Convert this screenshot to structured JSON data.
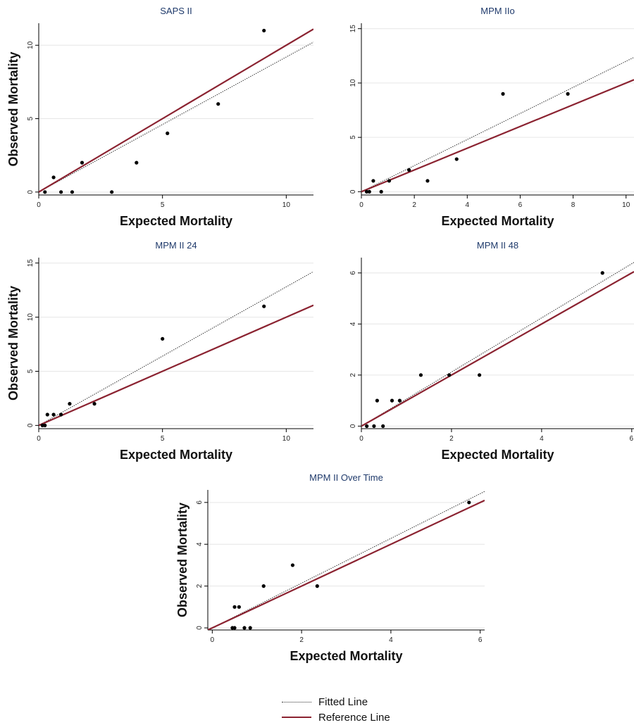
{
  "colors": {
    "fitted": "#333333",
    "reference": "#8b2331",
    "points": "#000000",
    "title": "#1f3a6b",
    "grid": "#e6e6e6"
  },
  "legend": {
    "fitted_label": "Fitted Line",
    "reference_label": "Reference Line"
  },
  "chart_data": [
    {
      "type": "scatter",
      "title": "SAPS II",
      "xlabel": "Expected Mortality",
      "ylabel": "Observed Mortality",
      "xlim": [
        0,
        11.1
      ],
      "ylim": [
        -0.2,
        11.5
      ],
      "xticks": [
        0,
        5,
        10
      ],
      "yticks": [
        0,
        5,
        10
      ],
      "grid": "horizontal",
      "points": [
        [
          0.25,
          0
        ],
        [
          0.6,
          1
        ],
        [
          0.9,
          0
        ],
        [
          1.35,
          0
        ],
        [
          1.75,
          2
        ],
        [
          2.95,
          0
        ],
        [
          3.95,
          2
        ],
        [
          5.2,
          4
        ],
        [
          7.25,
          6
        ],
        [
          9.1,
          11
        ]
      ],
      "fitted_line": {
        "slope": 0.92,
        "intercept": 0
      },
      "reference_line": {
        "slope": 1,
        "intercept": 0
      }
    },
    {
      "type": "scatter",
      "title": "MPM IIo",
      "xlabel": "Expected Mortality",
      "ylabel": "",
      "xlim": [
        0,
        10.3
      ],
      "ylim": [
        -0.3,
        15.5
      ],
      "xticks": [
        0,
        2,
        4,
        6,
        8,
        10
      ],
      "yticks": [
        0,
        5,
        10,
        15
      ],
      "grid": "horizontal",
      "points": [
        [
          0.2,
          0
        ],
        [
          0.3,
          0
        ],
        [
          0.45,
          1
        ],
        [
          0.75,
          0
        ],
        [
          1.05,
          1
        ],
        [
          1.8,
          2
        ],
        [
          2.5,
          1
        ],
        [
          3.6,
          3
        ],
        [
          5.35,
          9
        ],
        [
          7.8,
          9
        ]
      ],
      "fitted_line": {
        "slope": 1.2,
        "intercept": 0
      },
      "reference_line": {
        "slope": 1,
        "intercept": 0
      }
    },
    {
      "type": "scatter",
      "title": "MPM II 24",
      "xlabel": "Expected Mortality",
      "ylabel": "Observed Mortality",
      "xlim": [
        0,
        11.1
      ],
      "ylim": [
        -0.3,
        15.5
      ],
      "xticks": [
        0,
        5,
        10
      ],
      "yticks": [
        0,
        5,
        10,
        15
      ],
      "grid": "horizontal",
      "points": [
        [
          0.15,
          0
        ],
        [
          0.25,
          0
        ],
        [
          0.35,
          1
        ],
        [
          0.6,
          1
        ],
        [
          0.9,
          1
        ],
        [
          1.25,
          2
        ],
        [
          2.25,
          2
        ],
        [
          5,
          8
        ],
        [
          9.1,
          11
        ]
      ],
      "fitted_line": {
        "slope": 1.28,
        "intercept": 0
      },
      "reference_line": {
        "slope": 1,
        "intercept": 0
      }
    },
    {
      "type": "scatter",
      "title": "MPM II 48",
      "xlabel": "Expected Mortality",
      "ylabel": "",
      "xlim": [
        0,
        6.05
      ],
      "ylim": [
        -0.1,
        6.6
      ],
      "xticks": [
        0,
        2,
        4,
        6
      ],
      "yticks": [
        0,
        2,
        4,
        6
      ],
      "grid": "horizontal",
      "points": [
        [
          0.12,
          0
        ],
        [
          0.28,
          0
        ],
        [
          0.35,
          1
        ],
        [
          0.48,
          0
        ],
        [
          0.68,
          1
        ],
        [
          0.85,
          1
        ],
        [
          1.32,
          2
        ],
        [
          1.95,
          2
        ],
        [
          2.62,
          2
        ],
        [
          5.35,
          6
        ]
      ],
      "fitted_line": {
        "slope": 1.06,
        "intercept": 0
      },
      "reference_line": {
        "slope": 1,
        "intercept": 0
      }
    },
    {
      "type": "scatter",
      "title": "MPM II Over Time",
      "xlabel": "Expected Mortality",
      "ylabel": "Observed Mortality",
      "xlim": [
        -0.1,
        6.1
      ],
      "ylim": [
        -0.1,
        6.6
      ],
      "xticks": [
        0,
        2,
        4,
        6
      ],
      "yticks": [
        0,
        2,
        4,
        6
      ],
      "grid": "horizontal",
      "points": [
        [
          0.45,
          0
        ],
        [
          0.5,
          0
        ],
        [
          0.5,
          1
        ],
        [
          0.6,
          1
        ],
        [
          0.72,
          0
        ],
        [
          0.85,
          0
        ],
        [
          1.15,
          2
        ],
        [
          1.8,
          3
        ],
        [
          2.35,
          2
        ],
        [
          5.75,
          6
        ]
      ],
      "fitted_line": {
        "slope": 1.07,
        "intercept": 0
      },
      "reference_line": {
        "slope": 1,
        "intercept": 0
      }
    }
  ]
}
